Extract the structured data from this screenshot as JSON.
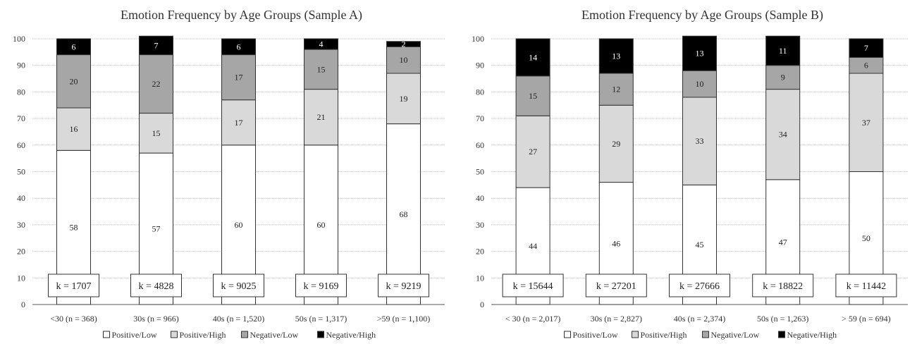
{
  "chart_data": [
    {
      "type": "bar",
      "stacked": true,
      "title": "Emotion Frequency by Age Groups (Sample A)",
      "categories": [
        "<30 (n = 368)",
        "30s (n = 966)",
        "40s (n = 1,520)",
        "50s (n = 1,317)",
        ">59 (n = 1,100)"
      ],
      "series": [
        {
          "name": "Positive/Low",
          "values": [
            58,
            57,
            60,
            60,
            68
          ]
        },
        {
          "name": "Positive/High",
          "values": [
            16,
            15,
            17,
            21,
            19
          ]
        },
        {
          "name": "Negative/Low",
          "values": [
            20,
            22,
            17,
            15,
            10
          ]
        },
        {
          "name": "Negative/High",
          "values": [
            6,
            7,
            6,
            4,
            2
          ]
        }
      ],
      "k_labels": [
        "k = 1707",
        "k = 4828",
        "k = 9025",
        "k = 9169",
        "k = 9219"
      ],
      "ylim": [
        0,
        100
      ],
      "yticks": [
        0,
        10,
        20,
        30,
        40,
        50,
        60,
        70,
        80,
        90,
        100
      ],
      "grid": true,
      "legend_position": "bottom"
    },
    {
      "type": "bar",
      "stacked": true,
      "title": "Emotion Frequency by Age Groups (Sample B)",
      "categories": [
        "< 30 (n = 2,017)",
        "30s (n = 2,827)",
        "40s (n = 2,374)",
        "50s (n = 1,263)",
        "> 59 (n = 694)"
      ],
      "series": [
        {
          "name": "Positive/Low",
          "values": [
            44,
            46,
            45,
            47,
            50
          ]
        },
        {
          "name": "Positive/High",
          "values": [
            27,
            29,
            33,
            34,
            37
          ]
        },
        {
          "name": "Negative/Low",
          "values": [
            15,
            12,
            10,
            9,
            6
          ]
        },
        {
          "name": "Negative/High",
          "values": [
            14,
            13,
            13,
            11,
            7
          ]
        }
      ],
      "k_labels": [
        "k = 15644",
        "k = 27201",
        "k = 27666",
        "k = 18822",
        "k = 11442"
      ],
      "ylim": [
        0,
        100
      ],
      "yticks": [
        0,
        10,
        20,
        30,
        40,
        50,
        60,
        70,
        80,
        90,
        100
      ],
      "grid": true,
      "legend_position": "bottom"
    }
  ],
  "colors": {
    "Positive/Low": "#ffffff",
    "Positive/High": "#d9d9d9",
    "Negative/Low": "#a6a6a6",
    "Negative/High": "#000000",
    "grid": "#bfbfbf",
    "axis": "#595959"
  }
}
